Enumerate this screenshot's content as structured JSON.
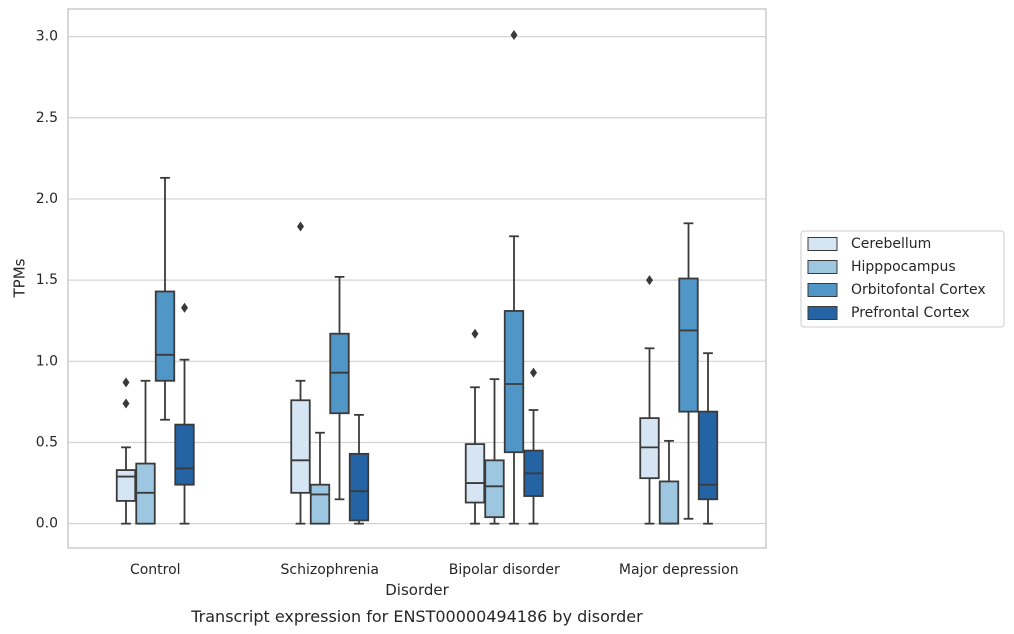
{
  "chart_data": {
    "type": "box",
    "caption": "Transcript expression for ENST00000494186 by disorder",
    "xlabel": "Disorder",
    "ylabel": "TPMs",
    "ylim": [
      -0.15,
      3.17
    ],
    "yticks": [
      "0.0",
      "0.5",
      "1.0",
      "1.5",
      "2.0",
      "2.5",
      "3.0"
    ],
    "grid": "horizontal",
    "legend_position": "right",
    "categories": [
      "Control",
      "Schizophrenia",
      "Bipolar disorder",
      "Major depression"
    ],
    "series": [
      {
        "name": "Cerebellum",
        "color": "#d6e5f3",
        "boxes": [
          {
            "whislo": 0.0,
            "q1": 0.14,
            "med": 0.29,
            "q3": 0.33,
            "whishi": 0.47,
            "fliers": [
              0.74,
              0.87
            ]
          },
          {
            "whislo": 0.0,
            "q1": 0.19,
            "med": 0.39,
            "q3": 0.76,
            "whishi": 0.88,
            "fliers": [
              1.83
            ]
          },
          {
            "whislo": 0.0,
            "q1": 0.13,
            "med": 0.25,
            "q3": 0.49,
            "whishi": 0.84,
            "fliers": [
              1.17
            ]
          },
          {
            "whislo": 0.0,
            "q1": 0.28,
            "med": 0.47,
            "q3": 0.65,
            "whishi": 1.08,
            "fliers": [
              1.5
            ]
          }
        ]
      },
      {
        "name": "Hipppocampus",
        "color": "#9dc7e0",
        "boxes": [
          {
            "whislo": 0.0,
            "q1": 0.0,
            "med": 0.19,
            "q3": 0.37,
            "whishi": 0.88,
            "fliers": []
          },
          {
            "whislo": 0.0,
            "q1": 0.0,
            "med": 0.18,
            "q3": 0.24,
            "whishi": 0.56,
            "fliers": []
          },
          {
            "whislo": 0.0,
            "q1": 0.04,
            "med": 0.23,
            "q3": 0.39,
            "whishi": 0.89,
            "fliers": []
          },
          {
            "whislo": 0.0,
            "q1": 0.0,
            "med": 0.0,
            "q3": 0.26,
            "whishi": 0.51,
            "fliers": []
          }
        ]
      },
      {
        "name": "Orbitofontal Cortex",
        "color": "#5096c7",
        "boxes": [
          {
            "whislo": 0.64,
            "q1": 0.88,
            "med": 1.04,
            "q3": 1.43,
            "whishi": 2.13,
            "fliers": []
          },
          {
            "whislo": 0.15,
            "q1": 0.68,
            "med": 0.93,
            "q3": 1.17,
            "whishi": 1.52,
            "fliers": []
          },
          {
            "whislo": 0.0,
            "q1": 0.44,
            "med": 0.86,
            "q3": 1.31,
            "whishi": 1.77,
            "fliers": [
              3.01
            ]
          },
          {
            "whislo": 0.03,
            "q1": 0.69,
            "med": 1.19,
            "q3": 1.51,
            "whishi": 1.85,
            "fliers": []
          }
        ]
      },
      {
        "name": "Prefrontal Cortex",
        "color": "#2464a4",
        "boxes": [
          {
            "whislo": 0.0,
            "q1": 0.24,
            "med": 0.34,
            "q3": 0.61,
            "whishi": 1.01,
            "fliers": [
              1.33
            ]
          },
          {
            "whislo": 0.0,
            "q1": 0.02,
            "med": 0.2,
            "q3": 0.43,
            "whishi": 0.67,
            "fliers": []
          },
          {
            "whislo": 0.0,
            "q1": 0.17,
            "med": 0.31,
            "q3": 0.45,
            "whishi": 0.7,
            "fliers": [
              0.93
            ]
          },
          {
            "whislo": 0.0,
            "q1": 0.15,
            "med": 0.24,
            "q3": 0.69,
            "whishi": 1.05,
            "fliers": []
          }
        ]
      }
    ]
  },
  "colors": {
    "grid": "#d3d3d3",
    "frame": "#cccccc",
    "line": "#3a3a3a",
    "text": "#262626"
  }
}
